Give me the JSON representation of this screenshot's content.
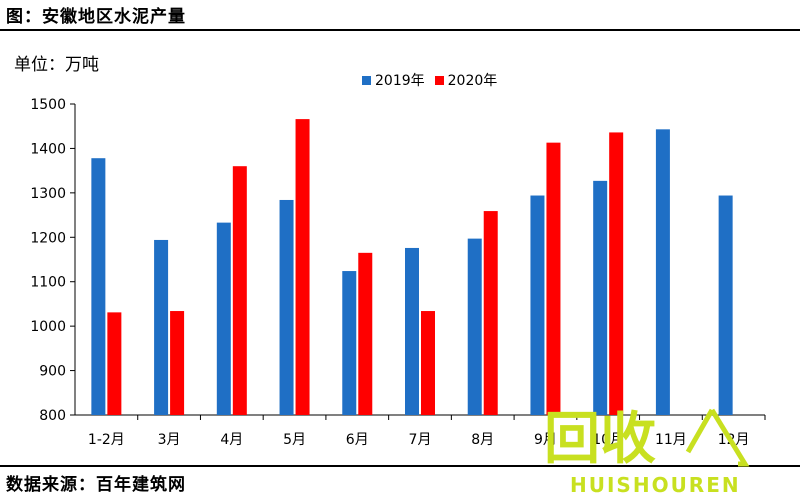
{
  "header": {
    "title": "图：安徽地区水泥产量"
  },
  "footer": {
    "source": "数据来源：百年建筑网"
  },
  "watermark": {
    "text_main": "回收",
    "text_sub": "HUISHOUREN"
  },
  "colors": {
    "series_2019": "#1f6fc5",
    "series_2020": "#ff0000",
    "axis": "#000000",
    "watermark": "#c8e020"
  },
  "chart_data": {
    "type": "bar",
    "title": "",
    "unit_label": "单位：万吨",
    "xlabel": "",
    "ylabel": "",
    "ylim": [
      800,
      1500
    ],
    "yticks": [
      800,
      900,
      1000,
      1100,
      1200,
      1300,
      1400,
      1500
    ],
    "categories": [
      "1-2月",
      "3月",
      "4月",
      "5月",
      "6月",
      "7月",
      "8月",
      "9月",
      "10月",
      "11月",
      "12月"
    ],
    "legend_position": "top",
    "grid": false,
    "series": [
      {
        "name": "2019年",
        "values": [
          1378,
          1194,
          1233,
          1284,
          1124,
          1176,
          1197,
          1294,
          1327,
          1443,
          1294
        ]
      },
      {
        "name": "2020年",
        "values": [
          1031,
          1034,
          1360,
          1466,
          1165,
          1034,
          1259,
          1413,
          1436,
          null,
          null
        ]
      }
    ]
  }
}
